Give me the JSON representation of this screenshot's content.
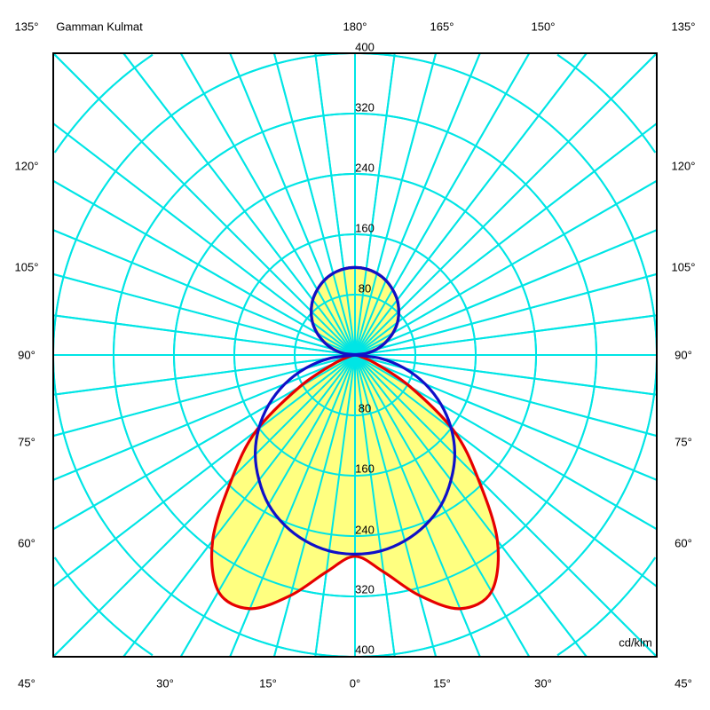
{
  "chart_data": {
    "type": "polar",
    "title": "Gamman Kulmat",
    "unit": "cd/klm",
    "rlim": [
      0,
      400
    ],
    "radial_ticks": [
      "80",
      "160",
      "240",
      "320",
      "400"
    ],
    "angle_labels": {
      "top": [
        "135°",
        "180°",
        "165°",
        "150°",
        "135°"
      ],
      "left": [
        "120°",
        "105°",
        "90°",
        "75°",
        "60°"
      ],
      "right": [
        "120°",
        "105°",
        "90°",
        "75°",
        "60°"
      ],
      "bottom": [
        "45°",
        "30°",
        "15°",
        "0°",
        "15°",
        "30°",
        "45°"
      ]
    },
    "grid": true,
    "gamma": [
      0,
      7.5,
      15,
      22.5,
      30,
      37.5,
      45,
      52.5,
      60,
      67.5,
      75,
      82.5,
      90,
      97.5,
      105,
      112.5,
      120,
      127.5,
      135,
      142.5,
      150,
      157.5,
      165,
      172.5,
      180
    ],
    "series": [
      {
        "color": "#e60000",
        "fill": "#ffff80",
        "values": [
          267,
          290,
          330,
          364,
          362,
          310,
          230,
          165,
          85,
          30,
          8,
          2,
          0,
          15,
          30,
          44,
          58,
          71,
          82,
          92,
          100,
          107,
          112,
          115,
          116
        ]
      },
      {
        "color": "#1010c8",
        "values": [
          264,
          262,
          255,
          244,
          229,
          209,
          187,
          161,
          132,
          101,
          68,
          34,
          0,
          15,
          30,
          44,
          58,
          71,
          82,
          92,
          100,
          107,
          112,
          115,
          116
        ]
      }
    ],
    "grid_color": "#00e5e5"
  }
}
